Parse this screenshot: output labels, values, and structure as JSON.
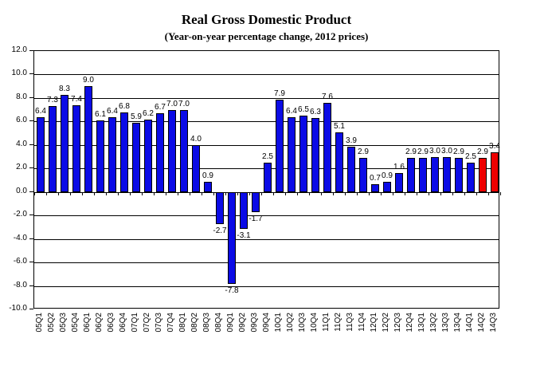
{
  "chart_data": {
    "type": "bar",
    "title": "Real Gross Domestic Product",
    "subtitle": "(Year-on-year percentage change, 2012 prices)",
    "xlabel": "",
    "ylabel": "",
    "ylim": [
      -10.0,
      12.0
    ],
    "y_tick_step": 2.0,
    "y_ticks": [
      12.0,
      10.0,
      8.0,
      6.0,
      4.0,
      2.0,
      0.0,
      -2.0,
      -4.0,
      -6.0,
      -8.0,
      -10.0
    ],
    "grid": true,
    "legend": "none",
    "data_labels": true,
    "categories": [
      "05Q1",
      "05Q2",
      "05Q3",
      "05Q4",
      "06Q1",
      "06Q2",
      "06Q3",
      "06Q4",
      "07Q1",
      "07Q2",
      "07Q3",
      "07Q4",
      "08Q1",
      "08Q2",
      "08Q3",
      "08Q4",
      "09Q1",
      "09Q2",
      "09Q3",
      "09Q4",
      "10Q1",
      "10Q2",
      "10Q3",
      "10Q4",
      "11Q1",
      "11Q2",
      "11Q3",
      "11Q4",
      "12Q1",
      "12Q2",
      "12Q3",
      "12Q4",
      "13Q1",
      "13Q2",
      "13Q3",
      "13Q4",
      "14Q1",
      "14Q2",
      "14Q3"
    ],
    "values": [
      6.4,
      7.3,
      8.3,
      7.4,
      9.0,
      6.1,
      6.4,
      6.8,
      5.9,
      6.2,
      6.7,
      7.0,
      7.0,
      4.0,
      0.9,
      -2.7,
      -7.8,
      -3.1,
      -1.7,
      2.5,
      7.9,
      6.4,
      6.5,
      6.3,
      7.6,
      5.1,
      3.9,
      2.9,
      0.7,
      0.9,
      1.6,
      2.9,
      2.9,
      3.0,
      3.0,
      2.9,
      2.5,
      2.9,
      3.4
    ],
    "highlighted_categories": [
      "14Q2",
      "14Q3"
    ],
    "colors": {
      "bar": "#0b0be6",
      "highlight": "#ee0000",
      "bar_border": "#000000",
      "gridline": "#000000",
      "axis": "#000000",
      "text": "#000000",
      "background": "#ffffff"
    }
  }
}
